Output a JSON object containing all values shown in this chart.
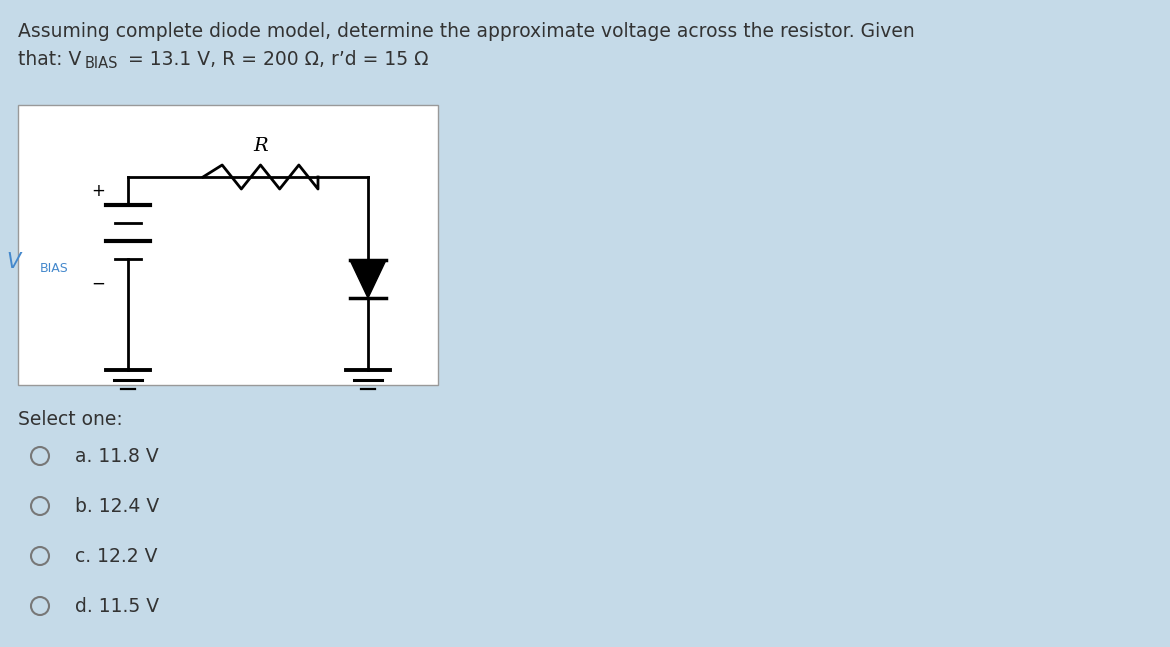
{
  "bg_color": "#c5dae8",
  "circuit_bg": "#ffffff",
  "title_line1": "Assuming complete diode model, determine the approximate voltage across the resistor. Given",
  "title_line2_prefix": "that: V",
  "title_sub": "BIAS",
  "title_line2_rest": " = 13.1 V, R = 200 Ω, r’d = 15 Ω",
  "select_label": "Select one:",
  "options": [
    "a. 11.8 V",
    "b. 12.4 V",
    "c. 12.2 V",
    "d. 11.5 V"
  ],
  "text_color": "#333333",
  "vbias_color": "#4488cc",
  "font_size_title": 13.5,
  "font_size_options": 13.5,
  "font_size_circuit": 13
}
